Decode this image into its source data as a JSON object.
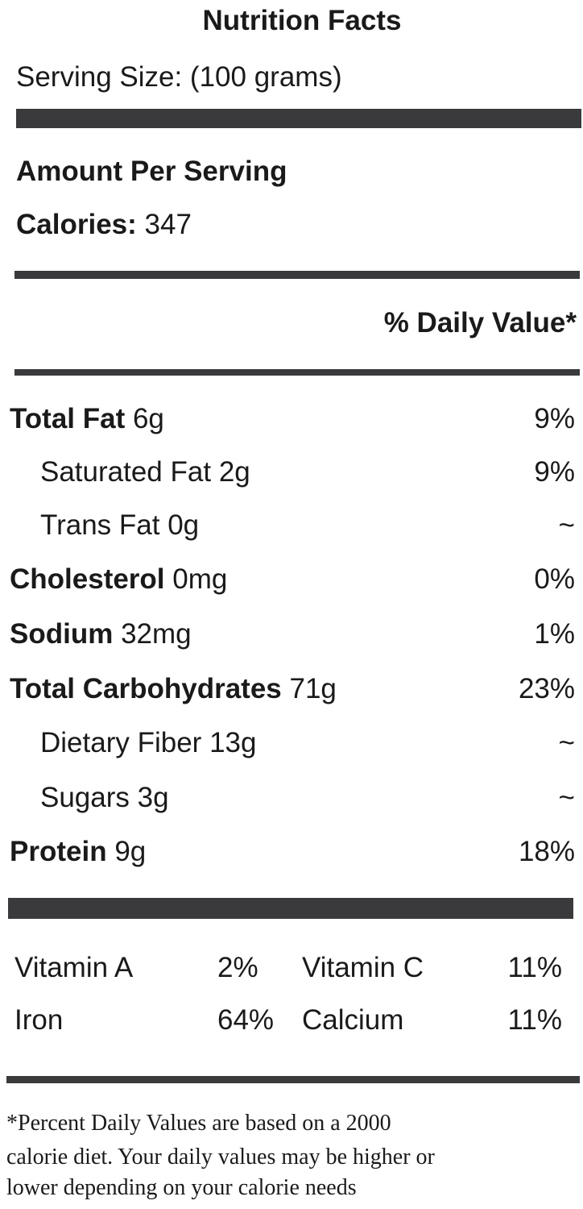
{
  "header": {
    "title": "Nutrition Facts",
    "serving_size": "Serving Size: (100 grams)"
  },
  "amount": {
    "heading": "Amount Per Serving",
    "calories_label": "Calories:",
    "calories_value": "347"
  },
  "daily_value_heading": "% Daily Value*",
  "nutrients": [
    {
      "name": "Total Fat",
      "amount": "6g",
      "daily_value": "9%"
    },
    {
      "name": "Saturated Fat",
      "amount": "2g",
      "daily_value": "9%"
    },
    {
      "name": "Trans Fat",
      "amount": "0g",
      "daily_value": "~"
    },
    {
      "name": "Cholesterol",
      "amount": "0mg",
      "daily_value": "0%"
    },
    {
      "name": "Sodium",
      "amount": "32mg",
      "daily_value": "1%"
    },
    {
      "name": "Total Carbohydrates",
      "amount": "71g",
      "daily_value": "23%"
    },
    {
      "name": "Dietary Fiber",
      "amount": "13g",
      "daily_value": "~"
    },
    {
      "name": "Sugars",
      "amount": "3g",
      "daily_value": "~"
    },
    {
      "name": "Protein",
      "amount": "9g",
      "daily_value": "18%"
    }
  ],
  "vitamins": [
    [
      {
        "name": "Vitamin A",
        "value": "2%"
      },
      {
        "name": "Vitamin C",
        "value": "11%"
      }
    ],
    [
      {
        "name": "Iron",
        "value": "64%"
      },
      {
        "name": "Calcium",
        "value": "11%"
      }
    ]
  ],
  "footnote": [
    "*Percent Daily Values are based on a 2000",
    "calorie diet. Your daily values may be higher or",
    "lower depending on your calorie needs"
  ]
}
